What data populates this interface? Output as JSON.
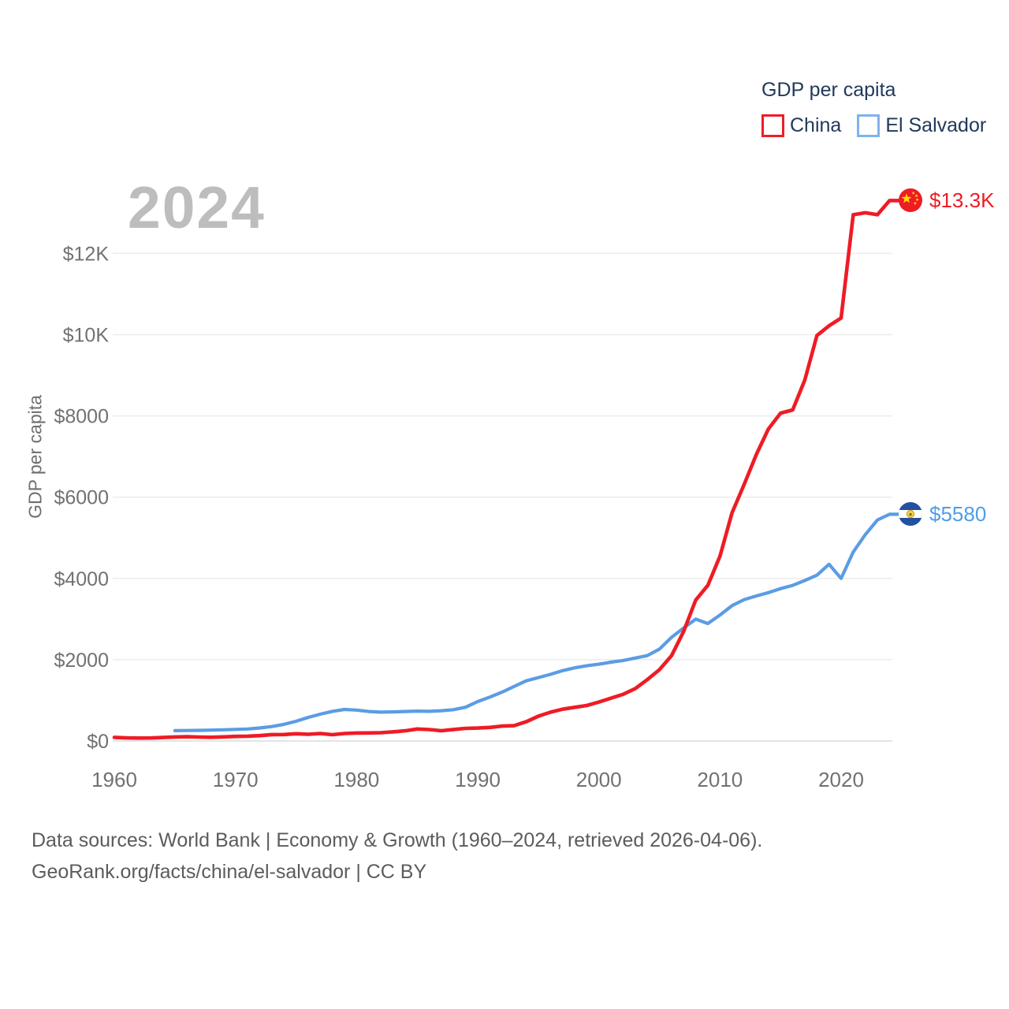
{
  "legend": {
    "title": "GDP per capita",
    "items": [
      {
        "label": "China",
        "color": "#ee1c25"
      },
      {
        "label": "El Salvador",
        "color": "#7fb3ea"
      }
    ]
  },
  "end_labels": {
    "china": {
      "value": "$13.3K",
      "color": "#ee1c25",
      "flag": "china-flag-icon"
    },
    "el_salvador": {
      "value": "$5580",
      "color": "#4f9ce8",
      "flag": "el-salvador-flag-icon"
    }
  },
  "footer": {
    "line1": "Data sources: World Bank | Economy & Growth (1960–2024, retrieved 2026-04-06).",
    "line2": "GeoRank.org/facts/china/el-salvador | CC BY"
  },
  "chart_data": {
    "type": "line",
    "title": "2024",
    "ylabel": "GDP per capita",
    "xlim": [
      1960,
      2024
    ],
    "ylim": [
      0,
      13800
    ],
    "grid": "horizontal",
    "legend_position": "top-right",
    "x_ticks": [
      1960,
      1970,
      1980,
      1990,
      2000,
      2010,
      2020
    ],
    "y_ticks": [
      {
        "v": 0,
        "label": "$0"
      },
      {
        "v": 2000,
        "label": "$2000"
      },
      {
        "v": 4000,
        "label": "$4000"
      },
      {
        "v": 6000,
        "label": "$6000"
      },
      {
        "v": 8000,
        "label": "$8000"
      },
      {
        "v": 10000,
        "label": "$10K"
      },
      {
        "v": 12000,
        "label": "$12K"
      }
    ],
    "series": [
      {
        "name": "China",
        "color": "#ee1c25",
        "start_year": 1960,
        "end_value_label": "$13.3K",
        "values": [
          90,
          76,
          71,
          74,
          85,
          98,
          104,
          97,
          91,
          100,
          113,
          119,
          132,
          157,
          160,
          178,
          165,
          185,
          156,
          184,
          195,
          197,
          203,
          225,
          251,
          294,
          282,
          252,
          284,
          311,
          318,
          333,
          366,
          377,
          473,
          610,
          709,
          781,
          828,
          873,
          959,
          1053,
          1149,
          1289,
          1509,
          1753,
          2099,
          2694,
          3468,
          3832,
          4550,
          5618,
          6317,
          7051,
          7679,
          8067,
          8148,
          8879,
          9977,
          10217,
          10409,
          12950,
          13000,
          12950,
          13300
        ]
      },
      {
        "name": "El Salvador",
        "color": "#5b9ce4",
        "start_year": 1965,
        "end_value_label": "$5580",
        "values": [
          255,
          258,
          262,
          268,
          275,
          285,
          295,
          320,
          355,
          410,
          485,
          580,
          660,
          730,
          775,
          760,
          725,
          710,
          715,
          725,
          735,
          730,
          745,
          770,
          830,
          970,
          1080,
          1200,
          1340,
          1480,
          1560,
          1640,
          1730,
          1800,
          1850,
          1890,
          1940,
          1980,
          2040,
          2100,
          2260,
          2550,
          2780,
          3000,
          2890,
          3100,
          3330,
          3480,
          3570,
          3650,
          3750,
          3830,
          3950,
          4080,
          4350,
          4000,
          4650,
          5080,
          5440,
          5580
        ]
      }
    ]
  }
}
